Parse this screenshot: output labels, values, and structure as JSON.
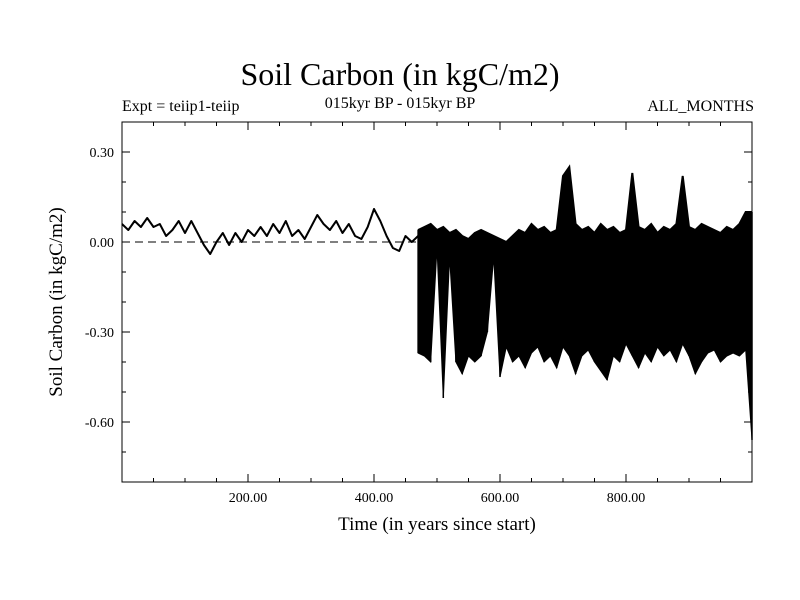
{
  "chart_data": {
    "type": "line",
    "title": "Soil Carbon (in kgC/m2)",
    "subtitle": "015kyr BP - 015kyr BP",
    "annotations": {
      "left": "Expt = teiip1-teiip",
      "right": "ALL_MONTHS"
    },
    "xlabel": "Time (in years since start)",
    "ylabel": "Soil Carbon (in kgC/m2)",
    "xlim": [
      0,
      1000
    ],
    "ylim": [
      -0.8,
      0.4
    ],
    "x_ticks": [
      200,
      400,
      600,
      800
    ],
    "x_tick_labels": [
      "200.00",
      "400.00",
      "600.00",
      "800.00"
    ],
    "y_ticks": [
      0.3,
      0.0,
      -0.3,
      -0.6
    ],
    "y_tick_labels": [
      "0.30",
      "0.00",
      "-0.30",
      "-0.60"
    ],
    "reference_line": {
      "y": 0.0,
      "style": "dashed"
    },
    "grid": false,
    "legend": "none",
    "colors": {
      "line": "#000000",
      "axes": "#000000",
      "background": "#ffffff"
    },
    "series": [
      {
        "x": [
          0,
          10,
          20,
          30,
          40,
          50,
          60,
          70,
          80,
          90,
          100,
          110,
          120,
          130,
          140,
          150,
          160,
          170,
          180,
          190,
          200,
          210,
          220,
          230,
          240,
          250,
          260,
          270,
          280,
          290,
          300,
          310,
          320,
          330,
          340,
          350,
          360,
          370,
          380,
          390,
          400,
          410,
          420,
          430,
          440,
          450,
          460,
          470
        ],
        "y": [
          0.06,
          0.04,
          0.07,
          0.05,
          0.08,
          0.05,
          0.06,
          0.02,
          0.04,
          0.07,
          0.03,
          0.07,
          0.03,
          -0.01,
          -0.04,
          0.0,
          0.03,
          -0.01,
          0.03,
          0.0,
          0.04,
          0.02,
          0.05,
          0.02,
          0.06,
          0.03,
          0.07,
          0.02,
          0.04,
          0.01,
          0.05,
          0.09,
          0.06,
          0.04,
          0.07,
          0.03,
          0.06,
          0.02,
          0.01,
          0.05,
          0.11,
          0.07,
          0.02,
          -0.02,
          -0.03,
          0.02,
          0.0,
          0.02
        ]
      },
      {
        "x": [
          470,
          480,
          490,
          500,
          510,
          520,
          530,
          540,
          550,
          560,
          570,
          580,
          590,
          600,
          610,
          620,
          630,
          640,
          650,
          660,
          670,
          680,
          690,
          700,
          710,
          720,
          730,
          740,
          750,
          760,
          770,
          780,
          790,
          800,
          810,
          820,
          830,
          840,
          850,
          860,
          870,
          880,
          890,
          900,
          910,
          920,
          930,
          940,
          950,
          960,
          970,
          980,
          990,
          1000
        ],
        "y_max": [
          0.04,
          0.05,
          0.06,
          0.04,
          0.05,
          0.03,
          0.04,
          0.02,
          0.01,
          0.03,
          0.04,
          0.03,
          0.02,
          0.01,
          0.0,
          0.02,
          0.04,
          0.03,
          0.06,
          0.04,
          0.05,
          0.03,
          0.04,
          0.22,
          0.25,
          0.06,
          0.04,
          0.05,
          0.03,
          0.06,
          0.04,
          0.05,
          0.03,
          0.04,
          0.23,
          0.05,
          0.04,
          0.06,
          0.03,
          0.05,
          0.04,
          0.06,
          0.22,
          0.05,
          0.04,
          0.06,
          0.05,
          0.04,
          0.03,
          0.05,
          0.04,
          0.06,
          0.1,
          0.1
        ],
        "y_min": [
          -0.37,
          -0.38,
          -0.4,
          -0.02,
          -0.52,
          -0.05,
          -0.4,
          -0.44,
          -0.38,
          -0.4,
          -0.38,
          -0.3,
          -0.05,
          -0.45,
          -0.35,
          -0.4,
          -0.38,
          -0.42,
          -0.37,
          -0.35,
          -0.4,
          -0.38,
          -0.42,
          -0.35,
          -0.38,
          -0.44,
          -0.38,
          -0.36,
          -0.4,
          -0.43,
          -0.46,
          -0.38,
          -0.4,
          -0.34,
          -0.38,
          -0.42,
          -0.37,
          -0.4,
          -0.35,
          -0.38,
          -0.36,
          -0.4,
          -0.34,
          -0.38,
          -0.44,
          -0.4,
          -0.37,
          -0.36,
          -0.4,
          -0.38,
          -0.37,
          -0.38,
          -0.36,
          -0.66
        ]
      }
    ]
  }
}
